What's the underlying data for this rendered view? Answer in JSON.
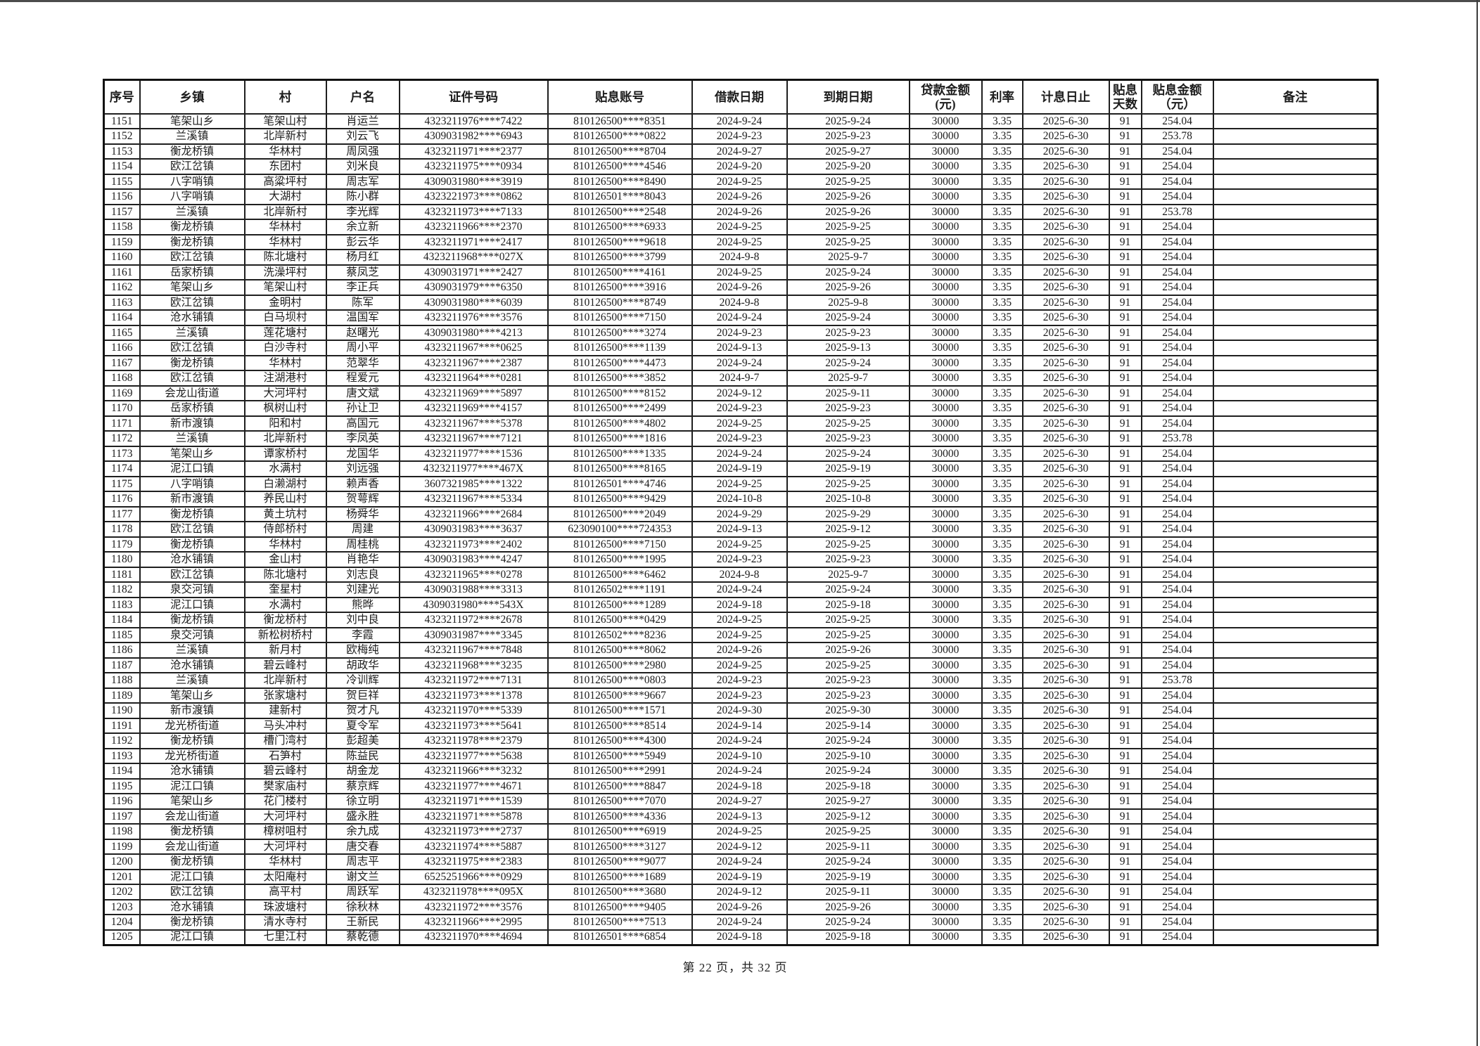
{
  "page": {
    "footer": "第 22 页，共 32 页"
  },
  "table": {
    "columns": [
      "序号",
      "乡镇",
      "村",
      "户名",
      "证件号码",
      "贴息账号",
      "借款日期",
      "到期日期",
      "贷款金额\n(元)",
      "利率",
      "计息日止",
      "贴息\n天数",
      "贴息金额\n（元）",
      "备注"
    ],
    "rows": [
      [
        "1151",
        "笔架山乡",
        "笔架山村",
        "肖运兰",
        "4323211976****7422",
        "810126500****8351",
        "2024-9-24",
        "2025-9-24",
        "30000",
        "3.35",
        "2025-6-30",
        "91",
        "254.04",
        ""
      ],
      [
        "1152",
        "兰溪镇",
        "北岸新村",
        "刘云飞",
        "4309031982****6943",
        "810126500****0822",
        "2024-9-23",
        "2025-9-23",
        "30000",
        "3.35",
        "2025-6-30",
        "91",
        "253.78",
        ""
      ],
      [
        "1153",
        "衡龙桥镇",
        "华林村",
        "周凤强",
        "4323211971****2377",
        "810126500****8704",
        "2024-9-27",
        "2025-9-27",
        "30000",
        "3.35",
        "2025-6-30",
        "91",
        "254.04",
        ""
      ],
      [
        "1154",
        "欧江岔镇",
        "东团村",
        "刘米良",
        "4323211975****0934",
        "810126500****4546",
        "2024-9-20",
        "2025-9-20",
        "30000",
        "3.35",
        "2025-6-30",
        "91",
        "254.04",
        ""
      ],
      [
        "1155",
        "八字哨镇",
        "高粱坪村",
        "周志军",
        "4309031980****3919",
        "810126500****8490",
        "2024-9-25",
        "2025-9-25",
        "30000",
        "3.35",
        "2025-6-30",
        "91",
        "254.04",
        ""
      ],
      [
        "1156",
        "八字哨镇",
        "大湖村",
        "陈小群",
        "4323221973****0862",
        "810126501****8043",
        "2024-9-26",
        "2025-9-26",
        "30000",
        "3.35",
        "2025-6-30",
        "91",
        "254.04",
        ""
      ],
      [
        "1157",
        "兰溪镇",
        "北岸新村",
        "李光辉",
        "4323211973****7133",
        "810126500****2548",
        "2024-9-26",
        "2025-9-26",
        "30000",
        "3.35",
        "2025-6-30",
        "91",
        "253.78",
        ""
      ],
      [
        "1158",
        "衡龙桥镇",
        "华林村",
        "余立新",
        "4323211966****2370",
        "810126500****6933",
        "2024-9-25",
        "2025-9-25",
        "30000",
        "3.35",
        "2025-6-30",
        "91",
        "254.04",
        ""
      ],
      [
        "1159",
        "衡龙桥镇",
        "华林村",
        "彭云华",
        "4323211971****2417",
        "810126500****9618",
        "2024-9-25",
        "2025-9-25",
        "30000",
        "3.35",
        "2025-6-30",
        "91",
        "254.04",
        ""
      ],
      [
        "1160",
        "欧江岔镇",
        "陈北塘村",
        "杨月红",
        "4323211968****027X",
        "810126500****3799",
        "2024-9-8",
        "2025-9-7",
        "30000",
        "3.35",
        "2025-6-30",
        "91",
        "254.04",
        ""
      ],
      [
        "1161",
        "岳家桥镇",
        "洗澡坪村",
        "蔡凤芝",
        "4309031971****2427",
        "810126500****4161",
        "2024-9-25",
        "2025-9-24",
        "30000",
        "3.35",
        "2025-6-30",
        "91",
        "254.04",
        ""
      ],
      [
        "1162",
        "笔架山乡",
        "笔架山村",
        "李正兵",
        "4309031979****6350",
        "810126500****3916",
        "2024-9-26",
        "2025-9-26",
        "30000",
        "3.35",
        "2025-6-30",
        "91",
        "254.04",
        ""
      ],
      [
        "1163",
        "欧江岔镇",
        "金明村",
        "陈军",
        "4309031980****6039",
        "810126500****8749",
        "2024-9-8",
        "2025-9-8",
        "30000",
        "3.35",
        "2025-6-30",
        "91",
        "254.04",
        ""
      ],
      [
        "1164",
        "沧水铺镇",
        "白马坝村",
        "温国军",
        "4323211976****3576",
        "810126500****7150",
        "2024-9-24",
        "2025-9-24",
        "30000",
        "3.35",
        "2025-6-30",
        "91",
        "254.04",
        ""
      ],
      [
        "1165",
        "兰溪镇",
        "莲花塘村",
        "赵曙光",
        "4309031980****4213",
        "810126500****3274",
        "2024-9-23",
        "2025-9-23",
        "30000",
        "3.35",
        "2025-6-30",
        "91",
        "254.04",
        ""
      ],
      [
        "1166",
        "欧江岔镇",
        "白沙寺村",
        "周小平",
        "4323211967****0625",
        "810126500****1139",
        "2024-9-13",
        "2025-9-13",
        "30000",
        "3.35",
        "2025-6-30",
        "91",
        "254.04",
        ""
      ],
      [
        "1167",
        "衡龙桥镇",
        "华林村",
        "范翠华",
        "4323211967****2387",
        "810126500****4473",
        "2024-9-24",
        "2025-9-24",
        "30000",
        "3.35",
        "2025-6-30",
        "91",
        "254.04",
        ""
      ],
      [
        "1168",
        "欧江岔镇",
        "注湖港村",
        "程爱元",
        "4323211964****0281",
        "810126500****3852",
        "2024-9-7",
        "2025-9-7",
        "30000",
        "3.35",
        "2025-6-30",
        "91",
        "254.04",
        ""
      ],
      [
        "1169",
        "会龙山街道",
        "大河坪村",
        "唐文斌",
        "4323211969****5897",
        "810126500****8152",
        "2024-9-12",
        "2025-9-11",
        "30000",
        "3.35",
        "2025-6-30",
        "91",
        "254.04",
        ""
      ],
      [
        "1170",
        "岳家桥镇",
        "枫树山村",
        "孙让卫",
        "4323211969****4157",
        "810126500****2499",
        "2024-9-23",
        "2025-9-23",
        "30000",
        "3.35",
        "2025-6-30",
        "91",
        "254.04",
        ""
      ],
      [
        "1171",
        "新市渡镇",
        "阳和村",
        "高国元",
        "4323211967****5378",
        "810126500****4802",
        "2024-9-25",
        "2025-9-25",
        "30000",
        "3.35",
        "2025-6-30",
        "91",
        "254.04",
        ""
      ],
      [
        "1172",
        "兰溪镇",
        "北岸新村",
        "李凤英",
        "4323211967****7121",
        "810126500****1816",
        "2024-9-23",
        "2025-9-23",
        "30000",
        "3.35",
        "2025-6-30",
        "91",
        "253.78",
        ""
      ],
      [
        "1173",
        "笔架山乡",
        "谭家桥村",
        "龙国华",
        "4323211977****1536",
        "810126500****1335",
        "2024-9-24",
        "2025-9-24",
        "30000",
        "3.35",
        "2025-6-30",
        "91",
        "254.04",
        ""
      ],
      [
        "1174",
        "泥江口镇",
        "水满村",
        "刘远强",
        "4323211977****467X",
        "810126500****8165",
        "2024-9-19",
        "2025-9-19",
        "30000",
        "3.35",
        "2025-6-30",
        "91",
        "254.04",
        ""
      ],
      [
        "1175",
        "八字哨镇",
        "白濑湖村",
        "赖声香",
        "3607321985****1322",
        "810126501****4746",
        "2024-9-25",
        "2025-9-25",
        "30000",
        "3.35",
        "2025-6-30",
        "91",
        "254.04",
        ""
      ],
      [
        "1176",
        "新市渡镇",
        "养民山村",
        "贺萼辉",
        "4323211967****5334",
        "810126500****9429",
        "2024-10-8",
        "2025-10-8",
        "30000",
        "3.35",
        "2025-6-30",
        "91",
        "254.04",
        ""
      ],
      [
        "1177",
        "衡龙桥镇",
        "黄土坑村",
        "杨舜华",
        "4323211966****2684",
        "810126500****2049",
        "2024-9-29",
        "2025-9-29",
        "30000",
        "3.35",
        "2025-6-30",
        "91",
        "254.04",
        ""
      ],
      [
        "1178",
        "欧江岔镇",
        "侍郎桥村",
        "周建",
        "4309031983****3637",
        "623090100****724353",
        "2024-9-13",
        "2025-9-12",
        "30000",
        "3.35",
        "2025-6-30",
        "91",
        "254.04",
        ""
      ],
      [
        "1179",
        "衡龙桥镇",
        "华林村",
        "周桂桃",
        "4323211973****2402",
        "810126500****7150",
        "2024-9-25",
        "2025-9-25",
        "30000",
        "3.35",
        "2025-6-30",
        "91",
        "254.04",
        ""
      ],
      [
        "1180",
        "沧水铺镇",
        "金山村",
        "肖艳华",
        "4309031983****4247",
        "810126500****1995",
        "2024-9-23",
        "2025-9-23",
        "30000",
        "3.35",
        "2025-6-30",
        "91",
        "254.04",
        ""
      ],
      [
        "1181",
        "欧江岔镇",
        "陈北塘村",
        "刘志良",
        "4323211965****0278",
        "810126500****6462",
        "2024-9-8",
        "2025-9-7",
        "30000",
        "3.35",
        "2025-6-30",
        "91",
        "254.04",
        ""
      ],
      [
        "1182",
        "泉交河镇",
        "奎星村",
        "刘建光",
        "4309031988****3313",
        "810126502****1191",
        "2024-9-24",
        "2025-9-24",
        "30000",
        "3.35",
        "2025-6-30",
        "91",
        "254.04",
        ""
      ],
      [
        "1183",
        "泥江口镇",
        "水满村",
        "熊晔",
        "4309031980****543X",
        "810126500****1289",
        "2024-9-18",
        "2025-9-18",
        "30000",
        "3.35",
        "2025-6-30",
        "91",
        "254.04",
        ""
      ],
      [
        "1184",
        "衡龙桥镇",
        "衡龙桥村",
        "刘中良",
        "4323211972****2678",
        "810126500****0429",
        "2024-9-25",
        "2025-9-25",
        "30000",
        "3.35",
        "2025-6-30",
        "91",
        "254.04",
        ""
      ],
      [
        "1185",
        "泉交河镇",
        "新松树桥村",
        "李霞",
        "4309031987****3345",
        "810126502****8236",
        "2024-9-25",
        "2025-9-25",
        "30000",
        "3.35",
        "2025-6-30",
        "91",
        "254.04",
        ""
      ],
      [
        "1186",
        "兰溪镇",
        "新月村",
        "欧梅纯",
        "4323211967****7848",
        "810126500****8062",
        "2024-9-26",
        "2025-9-26",
        "30000",
        "3.35",
        "2025-6-30",
        "91",
        "254.04",
        ""
      ],
      [
        "1187",
        "沧水铺镇",
        "碧云峰村",
        "胡政华",
        "4323211968****3235",
        "810126500****2980",
        "2024-9-25",
        "2025-9-25",
        "30000",
        "3.35",
        "2025-6-30",
        "91",
        "254.04",
        ""
      ],
      [
        "1188",
        "兰溪镇",
        "北岸新村",
        "冷训辉",
        "4323211972****7131",
        "810126500****0803",
        "2024-9-23",
        "2025-9-23",
        "30000",
        "3.35",
        "2025-6-30",
        "91",
        "253.78",
        ""
      ],
      [
        "1189",
        "笔架山乡",
        "张家塘村",
        "贺巨祥",
        "4323211973****1378",
        "810126500****9667",
        "2024-9-23",
        "2025-9-23",
        "30000",
        "3.35",
        "2025-6-30",
        "91",
        "254.04",
        ""
      ],
      [
        "1190",
        "新市渡镇",
        "建新村",
        "贺才凡",
        "4323211970****5339",
        "810126500****1571",
        "2024-9-30",
        "2025-9-30",
        "30000",
        "3.35",
        "2025-6-30",
        "91",
        "254.04",
        ""
      ],
      [
        "1191",
        "龙光桥街道",
        "马头冲村",
        "夏令军",
        "4323211973****5641",
        "810126500****8514",
        "2024-9-14",
        "2025-9-14",
        "30000",
        "3.35",
        "2025-6-30",
        "91",
        "254.04",
        ""
      ],
      [
        "1192",
        "衡龙桥镇",
        "槽门湾村",
        "彭超美",
        "4323211978****2379",
        "810126500****4300",
        "2024-9-24",
        "2025-9-24",
        "30000",
        "3.35",
        "2025-6-30",
        "91",
        "254.04",
        ""
      ],
      [
        "1193",
        "龙光桥街道",
        "石笋村",
        "陈益民",
        "4323211977****5638",
        "810126500****5949",
        "2024-9-10",
        "2025-9-10",
        "30000",
        "3.35",
        "2025-6-30",
        "91",
        "254.04",
        ""
      ],
      [
        "1194",
        "沧水铺镇",
        "碧云峰村",
        "胡金龙",
        "4323211966****3232",
        "810126500****2991",
        "2024-9-24",
        "2025-9-24",
        "30000",
        "3.35",
        "2025-6-30",
        "91",
        "254.04",
        ""
      ],
      [
        "1195",
        "泥江口镇",
        "樊家庙村",
        "蔡京辉",
        "4323211977****4671",
        "810126500****8847",
        "2024-9-18",
        "2025-9-18",
        "30000",
        "3.35",
        "2025-6-30",
        "91",
        "254.04",
        ""
      ],
      [
        "1196",
        "笔架山乡",
        "花门楼村",
        "徐立明",
        "4323211971****1539",
        "810126500****7070",
        "2024-9-27",
        "2025-9-27",
        "30000",
        "3.35",
        "2025-6-30",
        "91",
        "254.04",
        ""
      ],
      [
        "1197",
        "会龙山街道",
        "大河坪村",
        "盛永胜",
        "4323211971****5878",
        "810126500****4336",
        "2024-9-13",
        "2025-9-12",
        "30000",
        "3.35",
        "2025-6-30",
        "91",
        "254.04",
        ""
      ],
      [
        "1198",
        "衡龙桥镇",
        "樟树咀村",
        "余九成",
        "4323211973****2737",
        "810126500****6919",
        "2024-9-25",
        "2025-9-25",
        "30000",
        "3.35",
        "2025-6-30",
        "91",
        "254.04",
        ""
      ],
      [
        "1199",
        "会龙山街道",
        "大河坪村",
        "唐交春",
        "4323211974****5887",
        "810126500****3127",
        "2024-9-12",
        "2025-9-11",
        "30000",
        "3.35",
        "2025-6-30",
        "91",
        "254.04",
        ""
      ],
      [
        "1200",
        "衡龙桥镇",
        "华林村",
        "周志平",
        "4323211975****2383",
        "810126500****9077",
        "2024-9-24",
        "2025-9-24",
        "30000",
        "3.35",
        "2025-6-30",
        "91",
        "254.04",
        ""
      ],
      [
        "1201",
        "泥江口镇",
        "太阳庵村",
        "谢文兰",
        "6525251966****0929",
        "810126500****1689",
        "2024-9-19",
        "2025-9-19",
        "30000",
        "3.35",
        "2025-6-30",
        "91",
        "254.04",
        ""
      ],
      [
        "1202",
        "欧江岔镇",
        "高平村",
        "周跃军",
        "4323211978****095X",
        "810126500****3680",
        "2024-9-12",
        "2025-9-11",
        "30000",
        "3.35",
        "2025-6-30",
        "91",
        "254.04",
        ""
      ],
      [
        "1203",
        "沧水铺镇",
        "珠波塘村",
        "徐秋林",
        "4323211972****3576",
        "810126500****9405",
        "2024-9-26",
        "2025-9-26",
        "30000",
        "3.35",
        "2025-6-30",
        "91",
        "254.04",
        ""
      ],
      [
        "1204",
        "衡龙桥镇",
        "清水寺村",
        "王新民",
        "4323211966****2995",
        "810126500****7513",
        "2024-9-24",
        "2025-9-24",
        "30000",
        "3.35",
        "2025-6-30",
        "91",
        "254.04",
        ""
      ],
      [
        "1205",
        "泥江口镇",
        "七里江村",
        "蔡乾德",
        "4323211970****4694",
        "810126501****6854",
        "2024-9-18",
        "2025-9-18",
        "30000",
        "3.35",
        "2025-6-30",
        "91",
        "254.04",
        ""
      ]
    ]
  }
}
